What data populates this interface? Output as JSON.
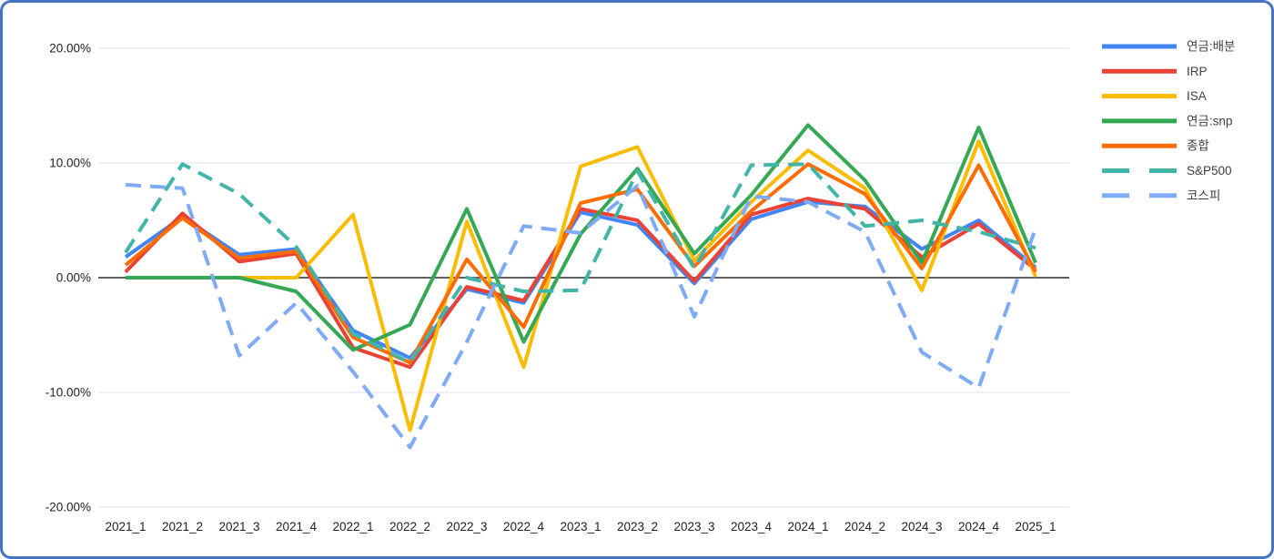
{
  "page": {
    "background_color": "#ffffff",
    "border_color": "#4472c4"
  },
  "chart_data": {
    "type": "line",
    "title": "",
    "xlabel": "",
    "ylabel": "",
    "grid": true,
    "legend_position": "right",
    "y_axis": {
      "min": -20,
      "max": 20,
      "tick_labels": [
        "20.00%",
        "10.00%",
        "0.00%",
        "-10.00%",
        "-20.00%"
      ],
      "tick_values": [
        20,
        10,
        0,
        -10,
        -20
      ]
    },
    "categories": [
      "2021_1",
      "2021_2",
      "2021_3",
      "2021_4",
      "2022_1",
      "2022_2",
      "2022_3",
      "2022_4",
      "2023_1",
      "2023_2",
      "2023_3",
      "2023_4",
      "2024_1",
      "2024_2",
      "2024_3",
      "2024_4",
      "2025_1"
    ],
    "series": [
      {
        "name": "연금:배분",
        "color": "#4285f4",
        "dashed": false,
        "values": [
          1.8,
          5.3,
          2.0,
          2.5,
          -4.6,
          -7.0,
          -1.0,
          -2.2,
          5.7,
          4.6,
          -0.5,
          5.1,
          6.6,
          6.2,
          2.5,
          5.0,
          0.9
        ]
      },
      {
        "name": "IRP",
        "color": "#ea4335",
        "dashed": false,
        "values": [
          0.5,
          5.6,
          1.4,
          2.1,
          -6.1,
          -7.8,
          -0.8,
          -2.0,
          6.0,
          5.0,
          -0.3,
          5.5,
          6.9,
          6.0,
          1.8,
          4.7,
          0.7
        ]
      },
      {
        "name": "ISA",
        "color": "#fbbc04",
        "dashed": false,
        "values": [
          0.0,
          0.0,
          0.0,
          0.0,
          5.5,
          -13.3,
          4.9,
          -7.8,
          9.7,
          11.4,
          1.5,
          6.6,
          11.1,
          7.8,
          -1.1,
          11.9,
          0.1
        ]
      },
      {
        "name": "연금:snp",
        "color": "#34a853",
        "dashed": false,
        "values": [
          0.0,
          0.0,
          0.0,
          -1.2,
          -6.3,
          -4.1,
          6.0,
          -5.6,
          3.8,
          9.5,
          2.1,
          7.2,
          13.3,
          8.5,
          1.3,
          13.1,
          1.3
        ]
      },
      {
        "name": "종합",
        "color": "#ff6d01",
        "dashed": false,
        "values": [
          1.1,
          5.2,
          1.7,
          2.3,
          -5.2,
          -7.4,
          1.6,
          -4.3,
          6.5,
          7.7,
          1.0,
          5.8,
          9.9,
          7.3,
          0.8,
          9.8,
          0.5
        ]
      },
      {
        "name": "S&P500",
        "color": "#42b5a9",
        "dashed": true,
        "values": [
          2.2,
          9.9,
          7.3,
          2.7,
          -4.9,
          -7.4,
          0.0,
          -1.2,
          -1.1,
          9.3,
          0.8,
          9.8,
          9.9,
          4.5,
          5.0,
          4.0,
          2.6
        ]
      },
      {
        "name": "코스피",
        "color": "#7faaf5",
        "dashed": true,
        "values": [
          8.1,
          7.8,
          -6.8,
          -2.2,
          -8.2,
          -14.8,
          -5.6,
          4.5,
          3.9,
          8.0,
          -3.4,
          7.1,
          6.6,
          4.0,
          -6.5,
          -9.6,
          4.3
        ]
      }
    ],
    "style": {
      "grid_color": "#e0e0e0",
      "zero_line_color": "#616161",
      "axis_text_color": "#202124",
      "legend_text_color": "#3c4043"
    }
  }
}
